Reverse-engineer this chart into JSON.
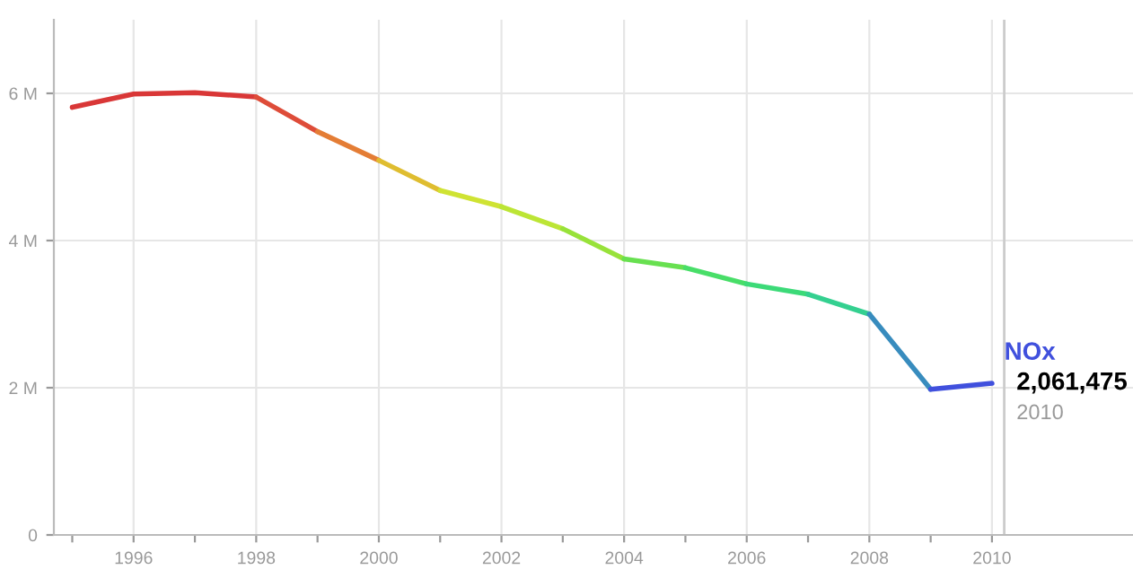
{
  "chart_data": {
    "type": "line",
    "series": [
      {
        "color": "#d93737",
        "x": [
          1995,
          1996,
          1997,
          1998
        ],
        "values": [
          5810000,
          5990000,
          6010000,
          5950000
        ]
      },
      {
        "color": "#de4c39",
        "x": [
          1998,
          1999
        ],
        "values": [
          5950000,
          5480000
        ]
      },
      {
        "color": "#e47d35",
        "x": [
          1999,
          2000
        ],
        "values": [
          5480000,
          5090000
        ]
      },
      {
        "color": "#dfbd30",
        "x": [
          2000,
          2001
        ],
        "values": [
          5090000,
          4680000
        ]
      },
      {
        "color": "#cfe333",
        "x": [
          2001,
          2002
        ],
        "values": [
          4680000,
          4460000
        ]
      },
      {
        "color": "#bce535",
        "x": [
          2002,
          2003
        ],
        "values": [
          4460000,
          4160000
        ]
      },
      {
        "color": "#98e23a",
        "x": [
          2003,
          2004
        ],
        "values": [
          4160000,
          3750000
        ]
      },
      {
        "color": "#68e050",
        "x": [
          2004,
          2005
        ],
        "values": [
          3750000,
          3630000
        ]
      },
      {
        "color": "#48de68",
        "x": [
          2005,
          2006
        ],
        "values": [
          3630000,
          3410000
        ]
      },
      {
        "color": "#3cda78",
        "x": [
          2006,
          2007
        ],
        "values": [
          3410000,
          3270000
        ]
      },
      {
        "color": "#34d090",
        "x": [
          2007,
          2008
        ],
        "values": [
          3270000,
          3000000
        ]
      },
      {
        "color": "#388cbe",
        "x": [
          2008,
          2009
        ],
        "values": [
          3000000,
          1980000
        ]
      },
      {
        "name": "NOx",
        "color": "#4050dd",
        "x": [
          2009,
          2010
        ],
        "values": [
          1980000,
          2061475
        ]
      }
    ],
    "annotations": [
      {
        "text": "2,061,475",
        "x": 2010,
        "y": 2061475
      },
      "2010"
    ],
    "ref_lines": [
      {
        "axis": "x",
        "value": 2010.2,
        "color": "#cccccc"
      }
    ],
    "xlim": [
      1994.7,
      2012.3
    ],
    "ylim": [
      0,
      7000000
    ],
    "xticks": [
      {
        "value": 1995,
        "label": null
      },
      1996,
      {
        "value": 1997,
        "label": null
      },
      1998,
      {
        "value": 1999,
        "label": null
      },
      2000,
      {
        "value": 2001,
        "label": null
      },
      2002,
      {
        "value": 2003,
        "label": null
      },
      2004,
      {
        "value": 2005,
        "label": null
      },
      2006,
      {
        "value": 2007,
        "label": null
      },
      2008,
      {
        "value": 2009,
        "label": null
      },
      2010
    ],
    "yticks": [
      {
        "value": 0,
        "label": "0"
      },
      {
        "value": 2000000,
        "label": "2 M"
      },
      {
        "value": 4000000,
        "label": "4 M"
      },
      {
        "value": 6000000,
        "label": "6 M"
      }
    ],
    "grid": true,
    "legend": false,
    "marker": "none",
    "line_style": "solid"
  }
}
